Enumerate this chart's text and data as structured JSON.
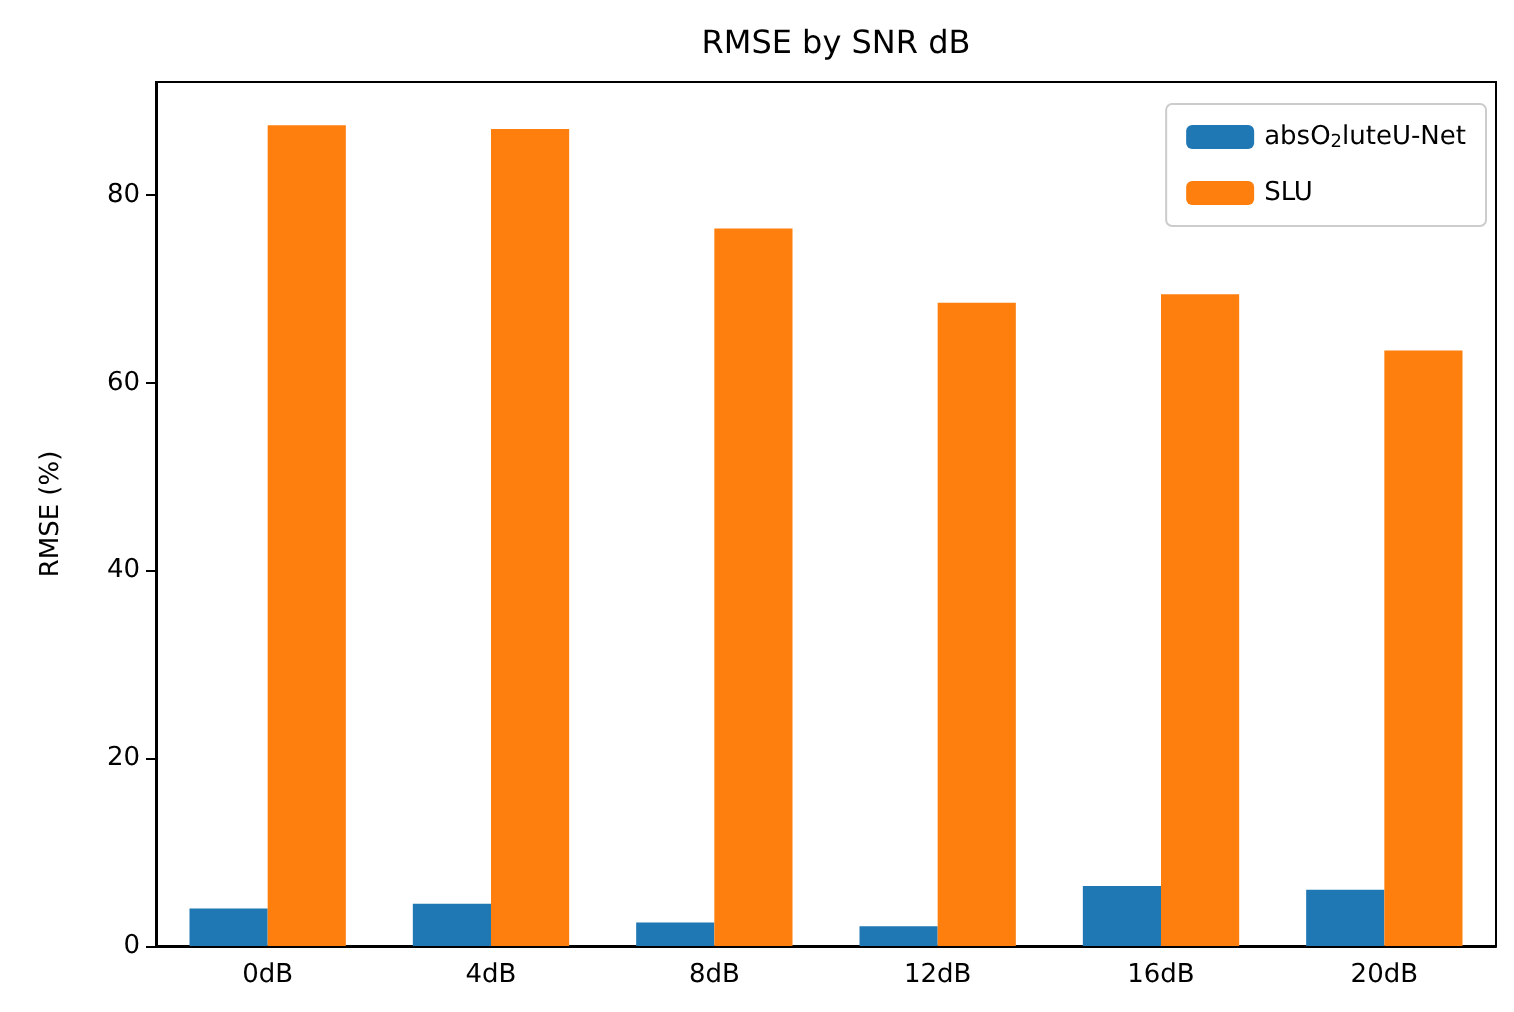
{
  "chart_data": {
    "type": "bar",
    "title": "RMSE by SNR dB",
    "ylabel": "RMSE (%)",
    "categories": [
      "0dB",
      "4dB",
      "8dB",
      "12dB",
      "16dB",
      "20dB"
    ],
    "series": [
      {
        "name": "absO$_{2}$luteU-Net",
        "color": "#1f77b4",
        "values": [
          4.0,
          4.5,
          2.5,
          2.1,
          6.4,
          6.0
        ]
      },
      {
        "name": "SLU",
        "color": "#ff7f0e",
        "values": [
          87.4,
          87.0,
          76.4,
          68.5,
          69.4,
          63.4
        ]
      }
    ],
    "ylim": [
      0,
      92
    ],
    "yticks": [
      0,
      20,
      40,
      60,
      80
    ],
    "grid": false,
    "legend": "top right"
  }
}
